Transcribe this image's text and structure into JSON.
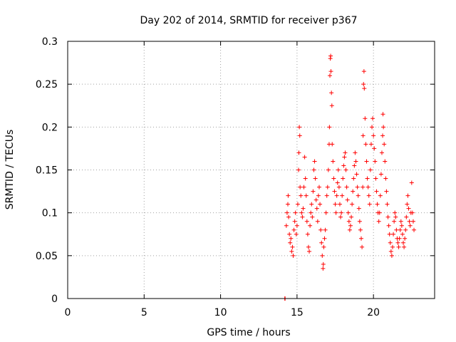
{
  "chart_data": {
    "type": "scatter",
    "title": "Day 202 of 2014, SRMTID for receiver p367",
    "xlabel": "GPS time / hours",
    "ylabel": "SRMTID / TECUs",
    "xlim": [
      0,
      24
    ],
    "ylim": [
      0,
      0.3
    ],
    "xticks": [
      0,
      5,
      10,
      15,
      20
    ],
    "xtick_labels": [
      "0",
      "5",
      "10",
      "15",
      "20"
    ],
    "yticks": [
      0,
      0.05,
      0.1,
      0.15,
      0.2,
      0.25,
      0.3
    ],
    "ytick_labels": [
      "0",
      "0.05",
      "0.1",
      "0.15",
      "0.2",
      "0.25",
      "0.3"
    ],
    "grid": true,
    "marker": "+",
    "color": "#ff0000",
    "series": [
      {
        "name": "SRMTID",
        "points": [
          [
            14.2,
            0.0
          ],
          [
            14.22,
            0.0
          ],
          [
            14.3,
            0.085
          ],
          [
            14.35,
            0.1
          ],
          [
            14.4,
            0.11
          ],
          [
            14.42,
            0.12
          ],
          [
            14.45,
            0.095
          ],
          [
            14.5,
            0.075
          ],
          [
            14.55,
            0.065
          ],
          [
            14.6,
            0.07
          ],
          [
            14.65,
            0.055
          ],
          [
            14.7,
            0.06
          ],
          [
            14.75,
            0.05
          ],
          [
            14.8,
            0.08
          ],
          [
            14.85,
            0.09
          ],
          [
            14.9,
            0.1
          ],
          [
            14.95,
            0.075
          ],
          [
            15.0,
            0.085
          ],
          [
            15.05,
            0.11
          ],
          [
            15.1,
            0.15
          ],
          [
            15.12,
            0.17
          ],
          [
            15.15,
            0.2
          ],
          [
            15.18,
            0.19
          ],
          [
            15.2,
            0.13
          ],
          [
            15.25,
            0.12
          ],
          [
            15.3,
            0.1
          ],
          [
            15.35,
            0.095
          ],
          [
            15.4,
            0.105
          ],
          [
            15.45,
            0.13
          ],
          [
            15.5,
            0.165
          ],
          [
            15.55,
            0.14
          ],
          [
            15.6,
            0.12
          ],
          [
            15.65,
            0.09
          ],
          [
            15.7,
            0.075
          ],
          [
            15.75,
            0.06
          ],
          [
            15.8,
            0.055
          ],
          [
            15.85,
            0.085
          ],
          [
            15.9,
            0.1
          ],
          [
            15.95,
            0.11
          ],
          [
            16.0,
            0.095
          ],
          [
            16.05,
            0.125
          ],
          [
            16.1,
            0.15
          ],
          [
            16.15,
            0.16
          ],
          [
            16.2,
            0.14
          ],
          [
            16.25,
            0.115
          ],
          [
            16.3,
            0.105
          ],
          [
            16.35,
            0.09
          ],
          [
            16.4,
            0.12
          ],
          [
            16.45,
            0.13
          ],
          [
            16.5,
            0.11
          ],
          [
            16.55,
            0.08
          ],
          [
            16.6,
            0.065
          ],
          [
            16.65,
            0.05
          ],
          [
            16.7,
            0.035
          ],
          [
            16.72,
            0.04
          ],
          [
            16.75,
            0.06
          ],
          [
            16.8,
            0.07
          ],
          [
            16.85,
            0.08
          ],
          [
            16.9,
            0.1
          ],
          [
            16.95,
            0.12
          ],
          [
            17.0,
            0.13
          ],
          [
            17.05,
            0.15
          ],
          [
            17.1,
            0.18
          ],
          [
            17.12,
            0.2
          ],
          [
            17.15,
            0.26
          ],
          [
            17.18,
            0.28
          ],
          [
            17.2,
            0.283
          ],
          [
            17.22,
            0.265
          ],
          [
            17.25,
            0.24
          ],
          [
            17.28,
            0.225
          ],
          [
            17.3,
            0.18
          ],
          [
            17.35,
            0.16
          ],
          [
            17.4,
            0.14
          ],
          [
            17.45,
            0.125
          ],
          [
            17.5,
            0.11
          ],
          [
            17.55,
            0.1
          ],
          [
            17.6,
            0.12
          ],
          [
            17.65,
            0.135
          ],
          [
            17.7,
            0.15
          ],
          [
            17.75,
            0.13
          ],
          [
            17.8,
            0.11
          ],
          [
            17.85,
            0.095
          ],
          [
            17.9,
            0.1
          ],
          [
            17.95,
            0.12
          ],
          [
            18.0,
            0.14
          ],
          [
            18.05,
            0.155
          ],
          [
            18.1,
            0.165
          ],
          [
            18.15,
            0.17
          ],
          [
            18.2,
            0.15
          ],
          [
            18.25,
            0.13
          ],
          [
            18.3,
            0.115
          ],
          [
            18.35,
            0.1
          ],
          [
            18.4,
            0.09
          ],
          [
            18.45,
            0.08
          ],
          [
            18.5,
            0.085
          ],
          [
            18.55,
            0.095
          ],
          [
            18.6,
            0.11
          ],
          [
            18.65,
            0.125
          ],
          [
            18.7,
            0.14
          ],
          [
            18.75,
            0.155
          ],
          [
            18.8,
            0.17
          ],
          [
            18.85,
            0.16
          ],
          [
            18.9,
            0.145
          ],
          [
            18.95,
            0.13
          ],
          [
            19.0,
            0.12
          ],
          [
            19.05,
            0.105
          ],
          [
            19.1,
            0.09
          ],
          [
            19.15,
            0.08
          ],
          [
            19.2,
            0.07
          ],
          [
            19.25,
            0.06
          ],
          [
            19.3,
            0.13
          ],
          [
            19.32,
            0.19
          ],
          [
            19.35,
            0.25
          ],
          [
            19.38,
            0.265
          ],
          [
            19.4,
            0.245
          ],
          [
            19.45,
            0.21
          ],
          [
            19.5,
            0.18
          ],
          [
            19.55,
            0.16
          ],
          [
            19.6,
            0.14
          ],
          [
            19.65,
            0.13
          ],
          [
            19.7,
            0.12
          ],
          [
            19.75,
            0.11
          ],
          [
            19.8,
            0.15
          ],
          [
            19.85,
            0.18
          ],
          [
            19.9,
            0.2
          ],
          [
            19.95,
            0.21
          ],
          [
            20.0,
            0.19
          ],
          [
            20.05,
            0.175
          ],
          [
            20.1,
            0.16
          ],
          [
            20.15,
            0.14
          ],
          [
            20.2,
            0.125
          ],
          [
            20.25,
            0.11
          ],
          [
            20.3,
            0.1
          ],
          [
            20.35,
            0.09
          ],
          [
            20.4,
            0.1
          ],
          [
            20.45,
            0.12
          ],
          [
            20.5,
            0.145
          ],
          [
            20.55,
            0.17
          ],
          [
            20.6,
            0.19
          ],
          [
            20.62,
            0.215
          ],
          [
            20.65,
            0.2
          ],
          [
            20.7,
            0.18
          ],
          [
            20.75,
            0.16
          ],
          [
            20.8,
            0.14
          ],
          [
            20.85,
            0.125
          ],
          [
            20.9,
            0.11
          ],
          [
            20.95,
            0.095
          ],
          [
            21.0,
            0.085
          ],
          [
            21.05,
            0.075
          ],
          [
            21.1,
            0.065
          ],
          [
            21.15,
            0.055
          ],
          [
            21.2,
            0.05
          ],
          [
            21.25,
            0.06
          ],
          [
            21.3,
            0.075
          ],
          [
            21.35,
            0.09
          ],
          [
            21.4,
            0.1
          ],
          [
            21.45,
            0.095
          ],
          [
            21.5,
            0.08
          ],
          [
            21.55,
            0.07
          ],
          [
            21.6,
            0.065
          ],
          [
            21.65,
            0.06
          ],
          [
            21.7,
            0.07
          ],
          [
            21.75,
            0.08
          ],
          [
            21.8,
            0.09
          ],
          [
            21.85,
            0.085
          ],
          [
            21.9,
            0.075
          ],
          [
            21.95,
            0.065
          ],
          [
            22.0,
            0.06
          ],
          [
            22.05,
            0.07
          ],
          [
            22.1,
            0.08
          ],
          [
            22.15,
            0.095
          ],
          [
            22.2,
            0.11
          ],
          [
            22.25,
            0.12
          ],
          [
            22.3,
            0.105
          ],
          [
            22.35,
            0.09
          ],
          [
            22.4,
            0.085
          ],
          [
            22.45,
            0.1
          ],
          [
            22.5,
            0.135
          ],
          [
            22.55,
            0.1
          ],
          [
            22.6,
            0.09
          ],
          [
            22.65,
            0.08
          ]
        ]
      }
    ]
  }
}
